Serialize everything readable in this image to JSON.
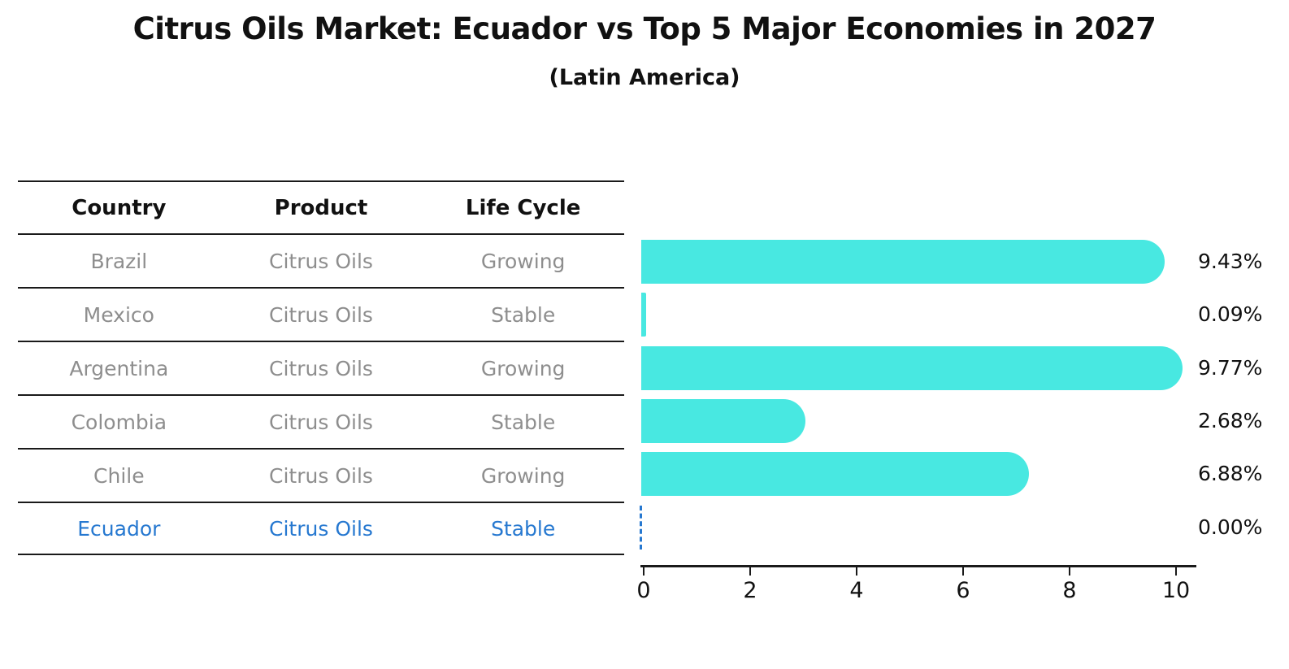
{
  "title": "Citrus Oils Market: Ecuador vs Top 5 Major Economies in 2027",
  "subtitle": "(Latin America)",
  "table": {
    "headers": [
      "Country",
      "Product",
      "Life Cycle"
    ],
    "rows": [
      {
        "country": "Brazil",
        "product": "Citrus Oils",
        "life_cycle": "Growing",
        "highlight": false
      },
      {
        "country": "Mexico",
        "product": "Citrus Oils",
        "life_cycle": "Stable",
        "highlight": false
      },
      {
        "country": "Argentina",
        "product": "Citrus Oils",
        "life_cycle": "Growing",
        "highlight": false
      },
      {
        "country": "Colombia",
        "product": "Citrus Oils",
        "life_cycle": "Stable",
        "highlight": false
      },
      {
        "country": "Chile",
        "product": "Citrus Oils",
        "life_cycle": "Growing",
        "highlight": false
      },
      {
        "country": "Ecuador",
        "product": "Citrus Oils",
        "life_cycle": "Stable",
        "highlight": true
      }
    ]
  },
  "chart_data": {
    "type": "bar",
    "orientation": "horizontal",
    "title": "Citrus Oils Market: Ecuador vs Top 5 Major Economies in 2027",
    "subtitle": "(Latin America)",
    "categories": [
      "Brazil",
      "Mexico",
      "Argentina",
      "Colombia",
      "Chile",
      "Ecuador"
    ],
    "values": [
      9.43,
      0.09,
      9.77,
      2.68,
      6.88,
      0.0
    ],
    "value_labels": [
      "9.43%",
      "0.09%",
      "9.77%",
      "2.68%",
      "6.88%",
      "0.00%"
    ],
    "xlabel": "",
    "ylabel": "",
    "xlim": [
      0,
      10.4
    ],
    "xticks": [
      0,
      2,
      4,
      6,
      8,
      10
    ],
    "grid": false,
    "legend": "none",
    "highlight_category": "Ecuador",
    "highlight_marker": "dashed-zero-line"
  },
  "colors": {
    "bar": "#48e8e1",
    "highlight": "#2678d0",
    "row_text": "#8e8e8e",
    "axis": "#1a1a1a",
    "background": "#ffffff"
  }
}
